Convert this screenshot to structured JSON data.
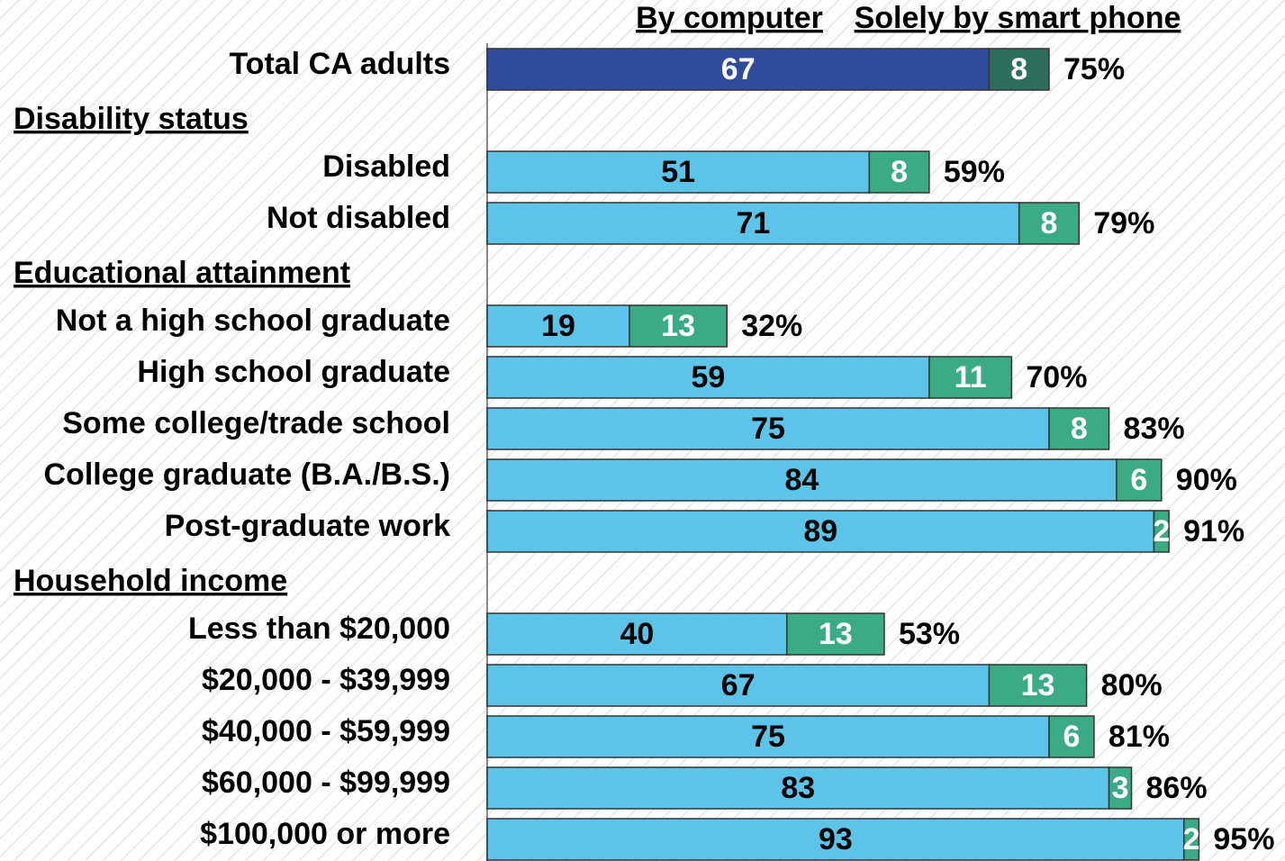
{
  "chart_data": {
    "type": "stacked-bar-horizontal",
    "categories": [
      "Total CA adults",
      "Disability status",
      "Disabled",
      "Not disabled",
      "Educational attainment",
      "Not a high school graduate",
      "High school graduate",
      "Some college/trade school",
      "College graduate (B.A./B.S.)",
      "Post-graduate work",
      "Household income",
      "Less than $20,000",
      "$20,000 - $39,999",
      "$40,000 - $59,999",
      "$60,000 - $99,999",
      "$100,000 or more"
    ],
    "series": [
      {
        "name": "By computer",
        "color": "#5bc4e8",
        "colors": [
          "#2f4b9c",
          null,
          "#5bc4e8",
          "#5bc4e8",
          null,
          "#5bc4e8",
          "#5bc4e8",
          "#5bc4e8",
          "#5bc4e8",
          "#5bc4e8",
          null,
          "#5bc4e8",
          "#5bc4e8",
          "#5bc4e8",
          "#5bc4e8",
          "#5bc4e8"
        ],
        "values": [
          67,
          null,
          51,
          71,
          null,
          19,
          59,
          75,
          84,
          89,
          null,
          40,
          67,
          75,
          83,
          93
        ]
      },
      {
        "name": "Solely by smart phone",
        "color": "#3aab82",
        "colors": [
          "#2e6e5e",
          null,
          "#3aab82",
          "#3aab82",
          null,
          "#3aab82",
          "#3aab82",
          "#3aab82",
          "#3aab82",
          "#3aab82",
          null,
          "#3aab82",
          "#3aab82",
          "#3aab82",
          "#3aab82",
          "#3aab82"
        ],
        "values": [
          8,
          null,
          8,
          8,
          null,
          13,
          11,
          8,
          6,
          2,
          null,
          13,
          13,
          6,
          3,
          2
        ]
      }
    ],
    "totals": {
      "values": [
        75,
        null,
        59,
        79,
        null,
        32,
        70,
        83,
        90,
        91,
        null,
        53,
        80,
        81,
        86,
        95
      ],
      "value_labels": [
        "75%",
        null,
        "59%",
        "79%",
        null,
        "32%",
        "70%",
        "83%",
        "90%",
        "91%",
        null,
        "53%",
        "80%",
        "81%",
        "86%",
        "95%"
      ]
    },
    "xlim": [
      0,
      100
    ]
  }
}
